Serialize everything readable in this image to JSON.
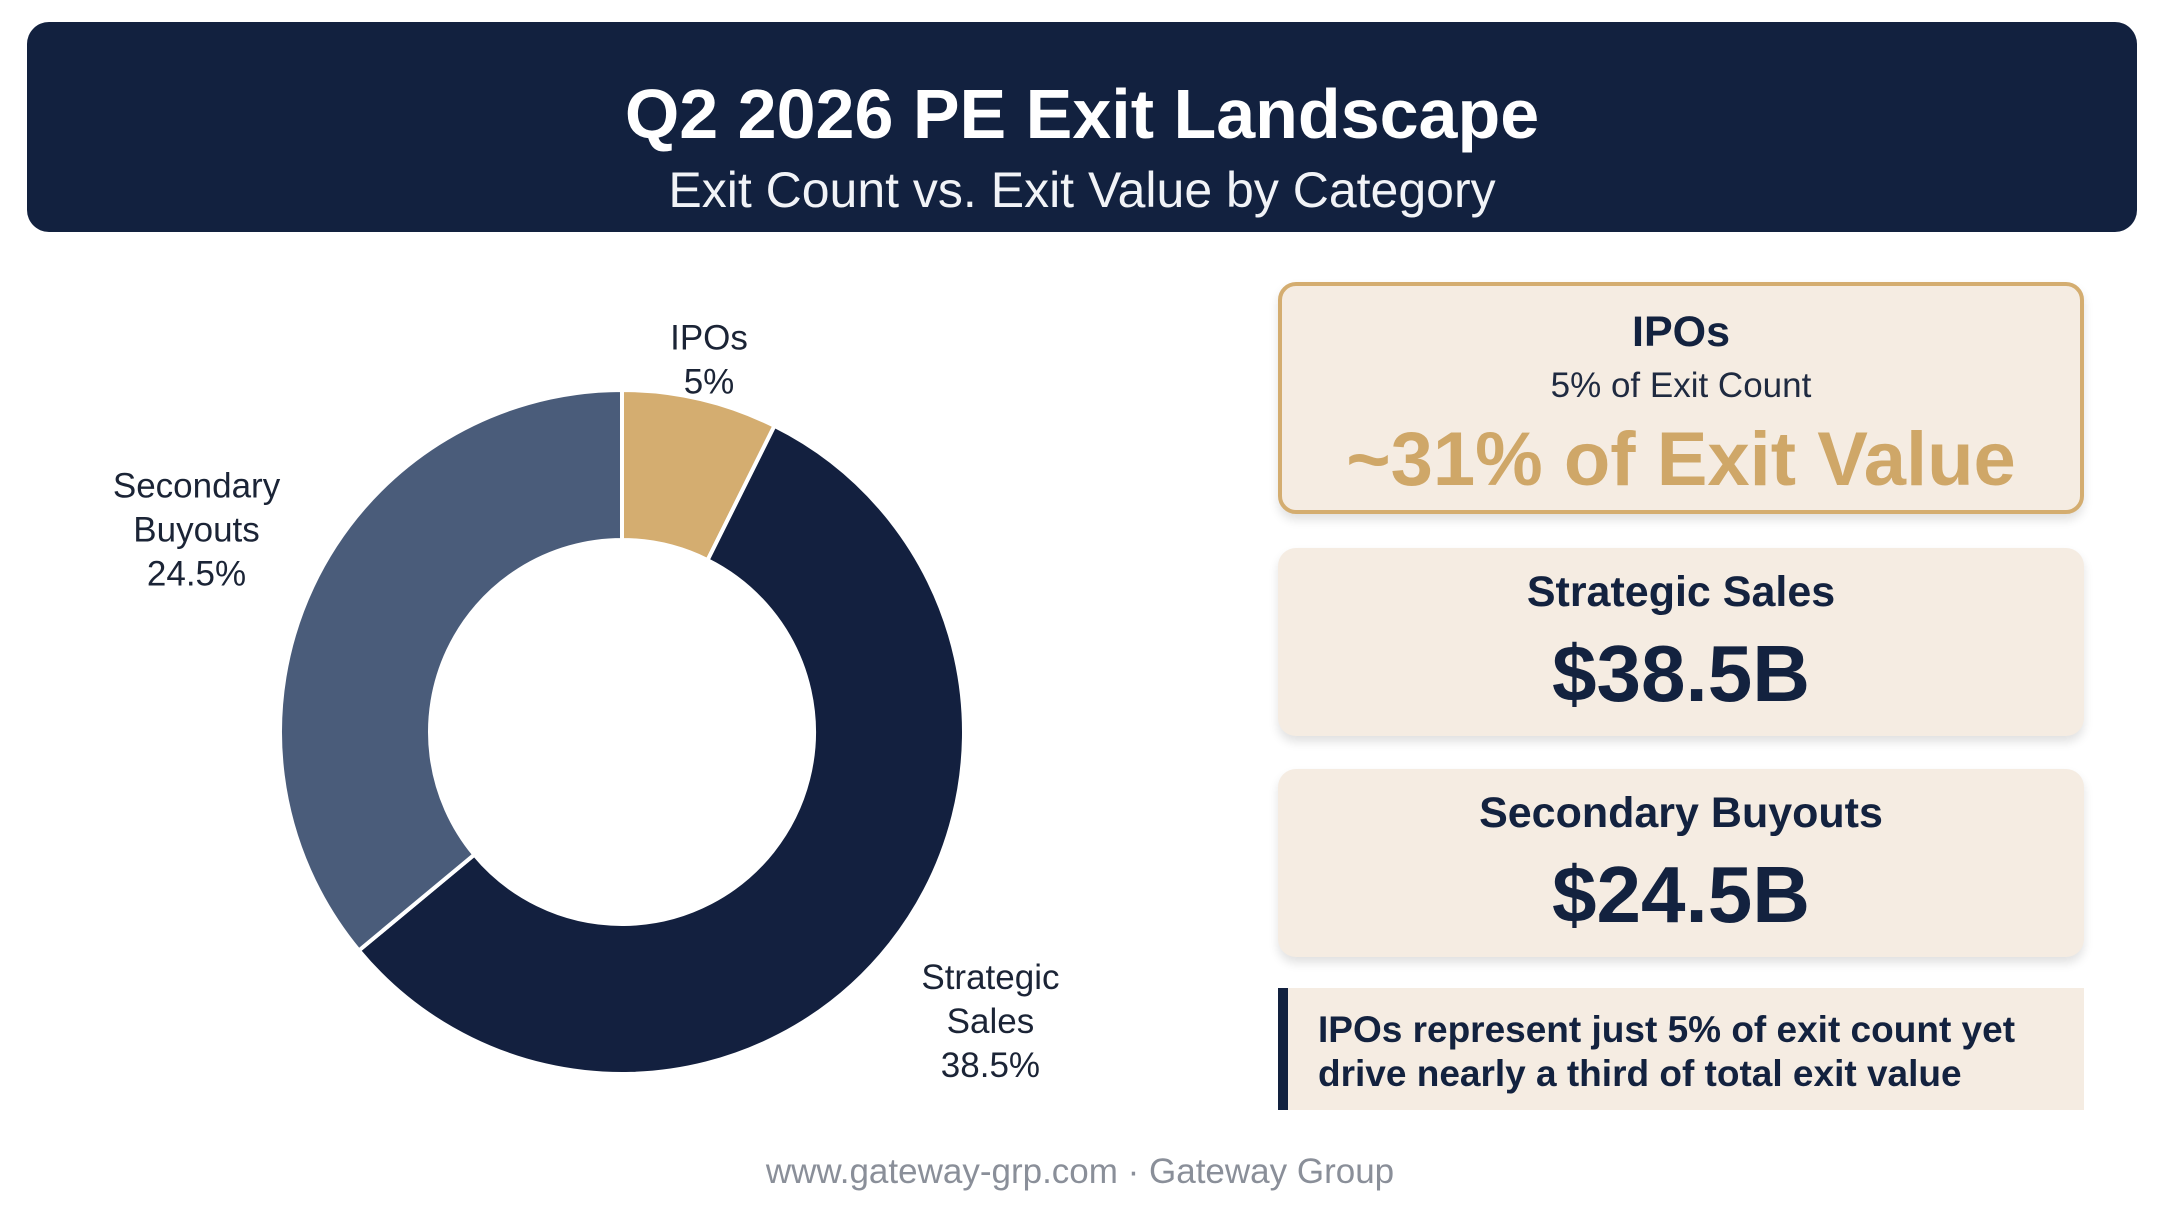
{
  "header": {
    "title": "Q2 2026 PE Exit Landscape",
    "subtitle": "Exit Count vs. Exit Value by Category"
  },
  "chart_data": {
    "type": "pie",
    "variant": "donut",
    "categories": [
      "IPOs",
      "Strategic Sales",
      "Secondary Buyouts"
    ],
    "values": [
      5,
      38.5,
      24.5
    ],
    "labels": [
      {
        "lines": [
          "IPOs",
          "5%"
        ]
      },
      {
        "lines": [
          "Strategic",
          "Sales",
          "38.5%"
        ]
      },
      {
        "lines": [
          "Secondary",
          "Buyouts",
          "24.5%"
        ]
      }
    ],
    "colors": [
      "#d4ad70",
      "#13203f",
      "#4a5c7a"
    ],
    "legend": "none"
  },
  "cards": {
    "ipo": {
      "name": "IPOs",
      "sub": "5% of Exit Count",
      "value": "~31% of Exit Value"
    },
    "strategic": {
      "name": "Strategic Sales",
      "value": "$38.5B"
    },
    "secondary": {
      "name": "Secondary Buyouts",
      "value": "$24.5B"
    }
  },
  "callout": {
    "line1": "IPOs represent just 5% of exit count yet",
    "line2": "drive nearly a third of total exit value"
  },
  "footer": "www.gateway-grp.com · Gateway Group",
  "colors": {
    "navy": "#12213f",
    "gold": "#d4ad70",
    "slate": "#4a5c7a",
    "card_bg": "#f5ece2"
  }
}
